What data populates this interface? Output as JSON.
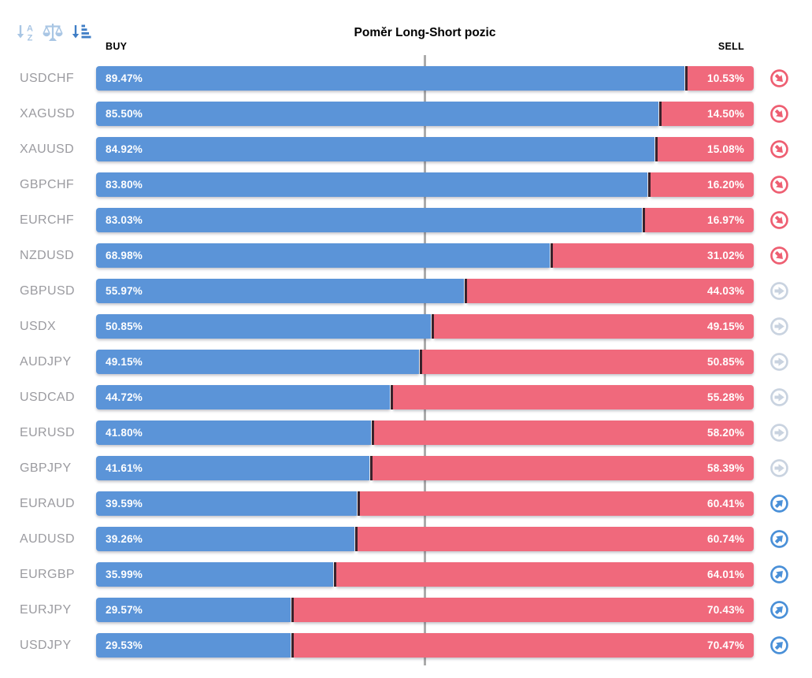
{
  "title": "Poměr Long-Short pozic",
  "columns": {
    "buy": "BUY",
    "sell": "SELL"
  },
  "toolbar": {
    "sort_alpha": "sort-alphabetical-descending",
    "balance": "balance-scale",
    "sort_amount": "sort-amount-descending"
  },
  "colors": {
    "buy": "#5b94d8",
    "sell": "#f0697c",
    "divider": "#3a222a",
    "label": "#9b9ba0",
    "center_line": "#ababab",
    "signal_down": "#ee5f72",
    "signal_neutral": "#c9d3e0",
    "signal_up": "#4a90d8",
    "icon_light": "#a9c6e4",
    "icon_dark": "#3f7ec6"
  },
  "rows": [
    {
      "symbol": "USDCHF",
      "buy": 89.47,
      "sell": 10.53,
      "buy_label": "89.47%",
      "sell_label": "10.53%",
      "signal": "down"
    },
    {
      "symbol": "XAGUSD",
      "buy": 85.5,
      "sell": 14.5,
      "buy_label": "85.50%",
      "sell_label": "14.50%",
      "signal": "down"
    },
    {
      "symbol": "XAUUSD",
      "buy": 84.92,
      "sell": 15.08,
      "buy_label": "84.92%",
      "sell_label": "15.08%",
      "signal": "down"
    },
    {
      "symbol": "GBPCHF",
      "buy": 83.8,
      "sell": 16.2,
      "buy_label": "83.80%",
      "sell_label": "16.20%",
      "signal": "down"
    },
    {
      "symbol": "EURCHF",
      "buy": 83.03,
      "sell": 16.97,
      "buy_label": "83.03%",
      "sell_label": "16.97%",
      "signal": "down"
    },
    {
      "symbol": "NZDUSD",
      "buy": 68.98,
      "sell": 31.02,
      "buy_label": "68.98%",
      "sell_label": "31.02%",
      "signal": "down"
    },
    {
      "symbol": "GBPUSD",
      "buy": 55.97,
      "sell": 44.03,
      "buy_label": "55.97%",
      "sell_label": "44.03%",
      "signal": "neutral"
    },
    {
      "symbol": "USDX",
      "buy": 50.85,
      "sell": 49.15,
      "buy_label": "50.85%",
      "sell_label": "49.15%",
      "signal": "neutral"
    },
    {
      "symbol": "AUDJPY",
      "buy": 49.15,
      "sell": 50.85,
      "buy_label": "49.15%",
      "sell_label": "50.85%",
      "signal": "neutral"
    },
    {
      "symbol": "USDCAD",
      "buy": 44.72,
      "sell": 55.28,
      "buy_label": "44.72%",
      "sell_label": "55.28%",
      "signal": "neutral"
    },
    {
      "symbol": "EURUSD",
      "buy": 41.8,
      "sell": 58.2,
      "buy_label": "41.80%",
      "sell_label": "58.20%",
      "signal": "neutral"
    },
    {
      "symbol": "GBPJPY",
      "buy": 41.61,
      "sell": 58.39,
      "buy_label": "41.61%",
      "sell_label": "58.39%",
      "signal": "neutral"
    },
    {
      "symbol": "EURAUD",
      "buy": 39.59,
      "sell": 60.41,
      "buy_label": "39.59%",
      "sell_label": "60.41%",
      "signal": "up"
    },
    {
      "symbol": "AUDUSD",
      "buy": 39.26,
      "sell": 60.74,
      "buy_label": "39.26%",
      "sell_label": "60.74%",
      "signal": "up"
    },
    {
      "symbol": "EURGBP",
      "buy": 35.99,
      "sell": 64.01,
      "buy_label": "35.99%",
      "sell_label": "64.01%",
      "signal": "up"
    },
    {
      "symbol": "EURJPY",
      "buy": 29.57,
      "sell": 70.43,
      "buy_label": "29.57%",
      "sell_label": "70.43%",
      "signal": "up"
    },
    {
      "symbol": "USDJPY",
      "buy": 29.53,
      "sell": 70.47,
      "buy_label": "29.53%",
      "sell_label": "70.47%",
      "signal": "up"
    }
  ],
  "chart_data": {
    "type": "bar",
    "orientation": "horizontal-stacked",
    "title": "Poměr Long-Short pozic",
    "categories": [
      "USDCHF",
      "XAGUSD",
      "XAUUSD",
      "GBPCHF",
      "EURCHF",
      "NZDUSD",
      "GBPUSD",
      "USDX",
      "AUDJPY",
      "USDCAD",
      "EURUSD",
      "GBPJPY",
      "EURAUD",
      "AUDUSD",
      "EURGBP",
      "EURJPY",
      "USDJPY"
    ],
    "series": [
      {
        "name": "BUY",
        "color": "#5b94d8",
        "values": [
          89.47,
          85.5,
          84.92,
          83.8,
          83.03,
          68.98,
          55.97,
          50.85,
          49.15,
          44.72,
          41.8,
          41.61,
          39.59,
          39.26,
          35.99,
          29.57,
          29.53
        ]
      },
      {
        "name": "SELL",
        "color": "#f0697c",
        "values": [
          10.53,
          14.5,
          15.08,
          16.2,
          16.97,
          31.02,
          44.03,
          49.15,
          50.85,
          55.28,
          58.2,
          58.39,
          60.41,
          60.74,
          64.01,
          70.43,
          70.47
        ]
      }
    ],
    "xlim": [
      0,
      100
    ],
    "value_suffix": "%",
    "reference_line_x": 50,
    "legend_position": "top",
    "grid": false
  }
}
